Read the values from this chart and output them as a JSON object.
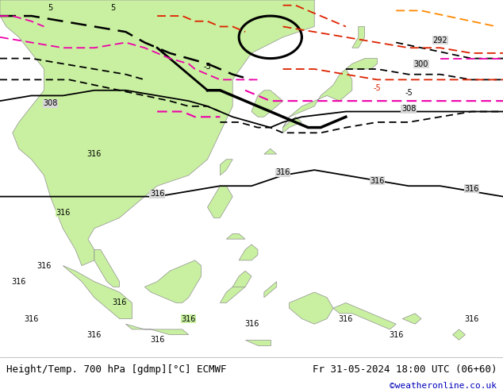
{
  "title_left": "Height/Temp. 700 hPa [gdmp][°C] ECMWF",
  "title_right": "Fr 31-05-2024 18:00 UTC (06+60)",
  "credit": "©weatheronline.co.uk",
  "bg_color": "#ffffff",
  "land_color_green": "#c8f0a0",
  "sea_color": "#d8d8d8",
  "border_color": "#909090",
  "text_color": "#000000",
  "credit_color": "#0000bb",
  "footer_bg": "#f0f0f0",
  "footer_font_size": 9,
  "credit_font_size": 8,
  "fig_width": 6.34,
  "fig_height": 4.9,
  "map_extent": [
    85,
    165,
    -12,
    55
  ],
  "contour_black_color": "#000000",
  "contour_red_color": "#dd2200",
  "contour_magenta_color": "#ee00aa",
  "contour_orange_color": "#ff8800"
}
